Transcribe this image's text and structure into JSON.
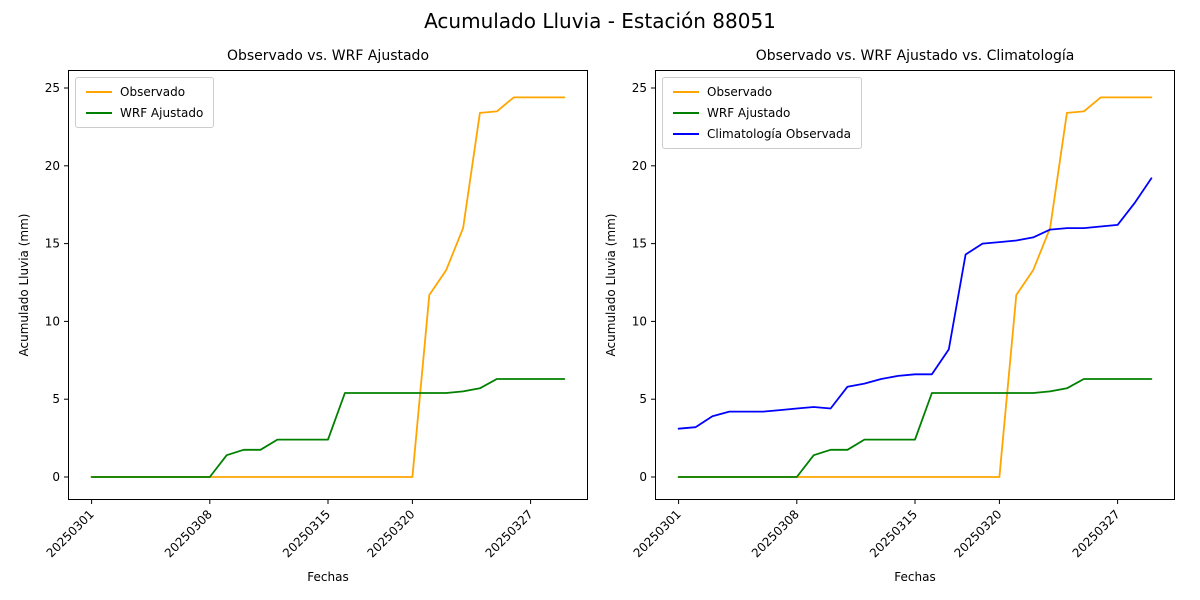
{
  "figure": {
    "title": "Acumulado Lluvia - Estación 88051"
  },
  "chart_data": [
    {
      "type": "line",
      "title": "Observado vs. WRF Ajustado",
      "xlabel": "Fechas",
      "ylabel": "Acumulado Lluvia (mm)",
      "n_points": 29,
      "xtick_indices": [
        0,
        7,
        14,
        19,
        26
      ],
      "xtick_labels": [
        "20250301",
        "20250308",
        "20250315",
        "20250320",
        "20250327"
      ],
      "yticks": [
        0,
        5,
        10,
        15,
        20,
        25
      ],
      "xlim": [
        -1.4,
        29.4
      ],
      "ylim": [
        -1.48,
        26.16
      ],
      "grid": false,
      "legend_position": "upper-left",
      "series": [
        {
          "name": "Observado",
          "color": "#FFA500",
          "values": [
            0,
            0,
            0,
            0,
            0,
            0,
            0,
            0,
            0,
            0,
            0,
            0,
            0,
            0,
            0,
            0,
            0,
            0,
            0,
            0,
            11.7,
            13.3,
            16.0,
            23.4,
            23.5,
            24.4,
            24.4,
            24.4,
            24.4
          ]
        },
        {
          "name": "WRF Ajustado",
          "color": "#008000",
          "values": [
            0,
            0,
            0,
            0,
            0,
            0,
            0,
            0,
            1.4,
            1.75,
            1.75,
            2.4,
            2.4,
            2.4,
            2.4,
            5.4,
            5.4,
            5.4,
            5.4,
            5.4,
            5.4,
            5.4,
            5.5,
            5.7,
            6.3,
            6.3,
            6.3,
            6.3,
            6.3
          ]
        }
      ]
    },
    {
      "type": "line",
      "title": "Observado vs. WRF Ajustado vs. Climatología",
      "xlabel": "Fechas",
      "ylabel": "Acumulado Lluvia (mm)",
      "n_points": 29,
      "xtick_indices": [
        0,
        7,
        14,
        19,
        26
      ],
      "xtick_labels": [
        "20250301",
        "20250308",
        "20250315",
        "20250320",
        "20250327"
      ],
      "yticks": [
        0,
        5,
        10,
        15,
        20,
        25
      ],
      "xlim": [
        -1.4,
        29.4
      ],
      "ylim": [
        -1.48,
        26.16
      ],
      "grid": false,
      "legend_position": "upper-left",
      "series": [
        {
          "name": "Observado",
          "color": "#FFA500",
          "values": [
            0,
            0,
            0,
            0,
            0,
            0,
            0,
            0,
            0,
            0,
            0,
            0,
            0,
            0,
            0,
            0,
            0,
            0,
            0,
            0,
            11.7,
            13.3,
            16.0,
            23.4,
            23.5,
            24.4,
            24.4,
            24.4,
            24.4
          ]
        },
        {
          "name": "WRF Ajustado",
          "color": "#008000",
          "values": [
            0,
            0,
            0,
            0,
            0,
            0,
            0,
            0,
            1.4,
            1.75,
            1.75,
            2.4,
            2.4,
            2.4,
            2.4,
            5.4,
            5.4,
            5.4,
            5.4,
            5.4,
            5.4,
            5.4,
            5.5,
            5.7,
            6.3,
            6.3,
            6.3,
            6.3,
            6.3
          ]
        },
        {
          "name": "Climatología Observada",
          "color": "#0000FF",
          "values": [
            3.1,
            3.2,
            3.9,
            4.2,
            4.2,
            4.2,
            4.3,
            4.4,
            4.5,
            4.4,
            5.8,
            6.0,
            6.3,
            6.5,
            6.6,
            6.6,
            8.2,
            14.3,
            15.0,
            15.1,
            15.2,
            15.4,
            15.9,
            16.0,
            16.0,
            16.1,
            16.2,
            17.6,
            19.2
          ]
        }
      ]
    }
  ]
}
